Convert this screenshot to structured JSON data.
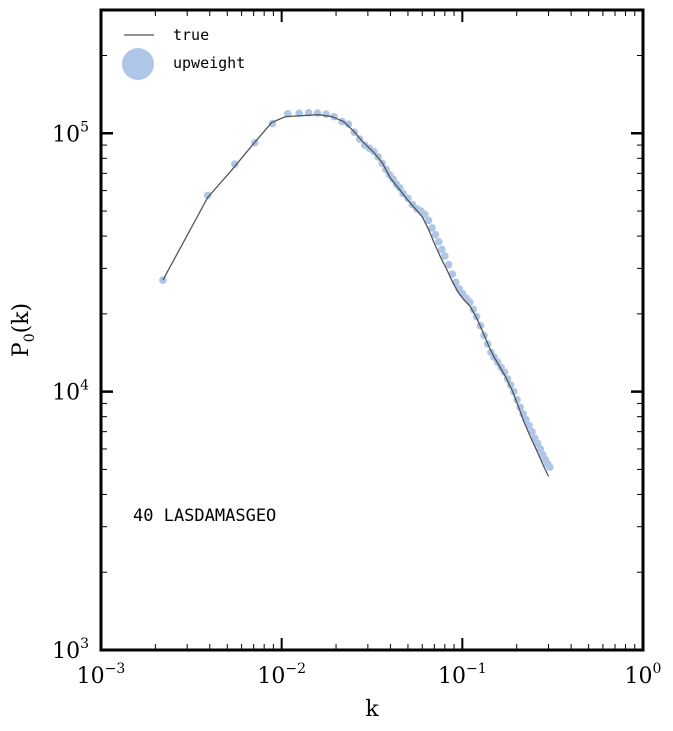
{
  "chart_data": {
    "type": "line",
    "title": "",
    "xlabel": "k",
    "ylabel": "P",
    "ylabel_subscript": "0",
    "ylabel_suffix": "(k)",
    "xscale": "log",
    "yscale": "log",
    "xlim": [
      0.001,
      1.0
    ],
    "ylim": [
      1000,
      300000
    ],
    "x_ticks": [
      {
        "base": "10",
        "exp": "−3",
        "value": 0.001
      },
      {
        "base": "10",
        "exp": "−2",
        "value": 0.01
      },
      {
        "base": "10",
        "exp": "−1",
        "value": 0.1
      },
      {
        "base": "10",
        "exp": "0",
        "value": 1.0
      }
    ],
    "y_ticks": [
      {
        "base": "10",
        "exp": "3",
        "value": 1000
      },
      {
        "base": "10",
        "exp": "4",
        "value": 10000
      },
      {
        "base": "10",
        "exp": "5",
        "value": 100000
      }
    ],
    "annotation": "40 LASDAMASGEO",
    "legend": {
      "position": "top-left",
      "entries": [
        {
          "label": "true",
          "kind": "line",
          "color": "#555555"
        },
        {
          "label": "upweight",
          "kind": "marker",
          "color": "#aec7e8"
        }
      ]
    },
    "series": [
      {
        "name": "true",
        "kind": "line",
        "color": "#555555",
        "x": [
          0.0022,
          0.0039,
          0.0052,
          0.0068,
          0.0088,
          0.0105,
          0.013,
          0.016,
          0.019,
          0.022,
          0.025,
          0.028,
          0.032,
          0.036,
          0.04,
          0.045,
          0.05,
          0.055,
          0.06,
          0.065,
          0.07,
          0.076,
          0.082,
          0.088,
          0.095,
          0.102,
          0.11,
          0.12,
          0.13,
          0.14,
          0.15,
          0.162,
          0.175,
          0.19,
          0.205,
          0.22,
          0.24,
          0.26,
          0.28,
          0.3
        ],
        "y": [
          27000,
          56500,
          71000,
          89000,
          110000,
          116000,
          117000,
          118000,
          116000,
          111000,
          102000,
          93000,
          85000,
          77000,
          67000,
          60500,
          55000,
          51000,
          47500,
          42500,
          37500,
          33000,
          29700,
          26700,
          24200,
          22700,
          21500,
          19300,
          17000,
          15000,
          13600,
          12400,
          11300,
          10000,
          8700,
          7600,
          6600,
          5850,
          5200,
          4700
        ]
      },
      {
        "name": "upweight",
        "kind": "scatter",
        "color": "#aec7e8",
        "x": [
          0.0022,
          0.0039,
          0.0055,
          0.0071,
          0.0089,
          0.0108,
          0.0125,
          0.0141,
          0.0158,
          0.0176,
          0.0195,
          0.0216,
          0.0234,
          0.0252,
          0.027,
          0.0288,
          0.0306,
          0.0324,
          0.0342,
          0.036,
          0.0378,
          0.0396,
          0.0414,
          0.0432,
          0.045,
          0.047,
          0.05,
          0.053,
          0.056,
          0.059,
          0.062,
          0.065,
          0.068,
          0.071,
          0.074,
          0.077,
          0.08,
          0.084,
          0.088,
          0.092,
          0.096,
          0.1,
          0.105,
          0.11,
          0.115,
          0.12,
          0.126,
          0.132,
          0.138,
          0.144,
          0.15,
          0.157,
          0.164,
          0.171,
          0.178,
          0.185,
          0.193,
          0.201,
          0.209,
          0.217,
          0.225,
          0.234,
          0.243,
          0.252,
          0.261,
          0.27,
          0.279,
          0.288,
          0.297,
          0.305
        ],
        "y": [
          27000,
          57500,
          76000,
          92000,
          109000,
          119000,
          119500,
          120000,
          119800,
          118500,
          116000,
          111000,
          108500,
          101000,
          95000,
          90000,
          87500,
          85000,
          81000,
          76500,
          72500,
          69000,
          66500,
          63500,
          61500,
          58500,
          56000,
          53000,
          51000,
          50000,
          48500,
          46000,
          43000,
          40500,
          38000,
          35500,
          33500,
          31000,
          28500,
          26500,
          25000,
          24000,
          23000,
          22200,
          20800,
          19500,
          18000,
          16500,
          15300,
          14200,
          13600,
          13000,
          12400,
          11900,
          11200,
          10600,
          10000,
          9300,
          8700,
          8200,
          7800,
          7400,
          7000,
          6600,
          6300,
          6000,
          5700,
          5450,
          5250,
          5100
        ]
      }
    ]
  }
}
